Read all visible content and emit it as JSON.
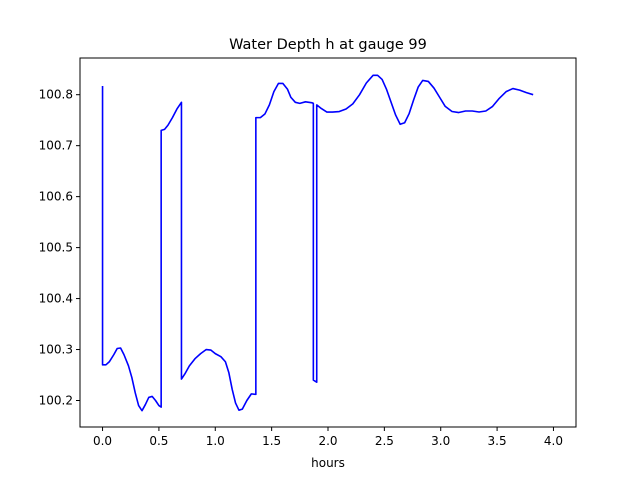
{
  "chart_data": {
    "type": "line",
    "title": "Water Depth h at gauge 99",
    "xlabel": "hours",
    "ylabel": "",
    "xlim": [
      -0.2,
      4.2
    ],
    "ylim": [
      100.148,
      100.872
    ],
    "xticks": [
      0.0,
      0.5,
      1.0,
      1.5,
      2.0,
      2.5,
      3.0,
      3.5,
      4.0
    ],
    "xtick_labels": [
      "0.0",
      "0.5",
      "1.0",
      "1.5",
      "2.0",
      "2.5",
      "3.0",
      "3.5",
      "4.0"
    ],
    "yticks": [
      100.2,
      100.3,
      100.4,
      100.5,
      100.6,
      100.7,
      100.8
    ],
    "ytick_labels": [
      "100.2",
      "100.3",
      "100.4",
      "100.5",
      "100.6",
      "100.7",
      "100.8"
    ],
    "grid": false,
    "series": [
      {
        "color": "#0000ff",
        "points": [
          [
            0.0,
            100.817
          ],
          [
            0.0,
            100.27
          ],
          [
            0.03,
            100.27
          ],
          [
            0.06,
            100.276
          ],
          [
            0.1,
            100.29
          ],
          [
            0.13,
            100.302
          ],
          [
            0.16,
            100.303
          ],
          [
            0.19,
            100.29
          ],
          [
            0.23,
            100.268
          ],
          [
            0.26,
            100.245
          ],
          [
            0.29,
            100.215
          ],
          [
            0.32,
            100.19
          ],
          [
            0.35,
            100.18
          ],
          [
            0.38,
            100.192
          ],
          [
            0.41,
            100.206
          ],
          [
            0.44,
            100.208
          ],
          [
            0.47,
            100.2
          ],
          [
            0.5,
            100.19
          ],
          [
            0.52,
            100.187
          ],
          [
            0.52,
            100.73
          ],
          [
            0.55,
            100.732
          ],
          [
            0.58,
            100.74
          ],
          [
            0.62,
            100.755
          ],
          [
            0.66,
            100.772
          ],
          [
            0.7,
            100.785
          ],
          [
            0.7,
            100.242
          ],
          [
            0.73,
            100.252
          ],
          [
            0.77,
            100.268
          ],
          [
            0.82,
            100.282
          ],
          [
            0.87,
            100.292
          ],
          [
            0.92,
            100.3
          ],
          [
            0.96,
            100.299
          ],
          [
            1.0,
            100.292
          ],
          [
            1.05,
            100.286
          ],
          [
            1.09,
            100.276
          ],
          [
            1.12,
            100.255
          ],
          [
            1.15,
            100.222
          ],
          [
            1.18,
            100.195
          ],
          [
            1.21,
            100.181
          ],
          [
            1.24,
            100.183
          ],
          [
            1.28,
            100.2
          ],
          [
            1.32,
            100.213
          ],
          [
            1.36,
            100.212
          ],
          [
            1.36,
            100.755
          ],
          [
            1.4,
            100.755
          ],
          [
            1.44,
            100.762
          ],
          [
            1.48,
            100.78
          ],
          [
            1.52,
            100.806
          ],
          [
            1.56,
            100.822
          ],
          [
            1.6,
            100.822
          ],
          [
            1.64,
            100.811
          ],
          [
            1.67,
            100.795
          ],
          [
            1.71,
            100.785
          ],
          [
            1.75,
            100.783
          ],
          [
            1.8,
            100.786
          ],
          [
            1.86,
            100.784
          ],
          [
            1.87,
            100.783
          ],
          [
            1.87,
            100.24
          ],
          [
            1.9,
            100.236
          ],
          [
            1.9,
            100.78
          ],
          [
            1.94,
            100.773
          ],
          [
            1.99,
            100.766
          ],
          [
            2.04,
            100.766
          ],
          [
            2.1,
            100.767
          ],
          [
            2.16,
            100.772
          ],
          [
            2.22,
            100.782
          ],
          [
            2.28,
            100.8
          ],
          [
            2.34,
            100.823
          ],
          [
            2.4,
            100.838
          ],
          [
            2.44,
            100.838
          ],
          [
            2.48,
            100.83
          ],
          [
            2.52,
            100.81
          ],
          [
            2.56,
            100.785
          ],
          [
            2.6,
            100.76
          ],
          [
            2.64,
            100.742
          ],
          [
            2.68,
            100.745
          ],
          [
            2.72,
            100.763
          ],
          [
            2.76,
            100.79
          ],
          [
            2.8,
            100.815
          ],
          [
            2.84,
            100.828
          ],
          [
            2.89,
            100.826
          ],
          [
            2.94,
            100.813
          ],
          [
            2.99,
            100.795
          ],
          [
            3.04,
            100.777
          ],
          [
            3.1,
            100.767
          ],
          [
            3.16,
            100.765
          ],
          [
            3.22,
            100.768
          ],
          [
            3.28,
            100.768
          ],
          [
            3.34,
            100.766
          ],
          [
            3.4,
            100.768
          ],
          [
            3.46,
            100.777
          ],
          [
            3.52,
            100.793
          ],
          [
            3.58,
            100.806
          ],
          [
            3.64,
            100.812
          ],
          [
            3.7,
            100.809
          ],
          [
            3.76,
            100.804
          ],
          [
            3.82,
            100.8
          ]
        ]
      }
    ]
  }
}
